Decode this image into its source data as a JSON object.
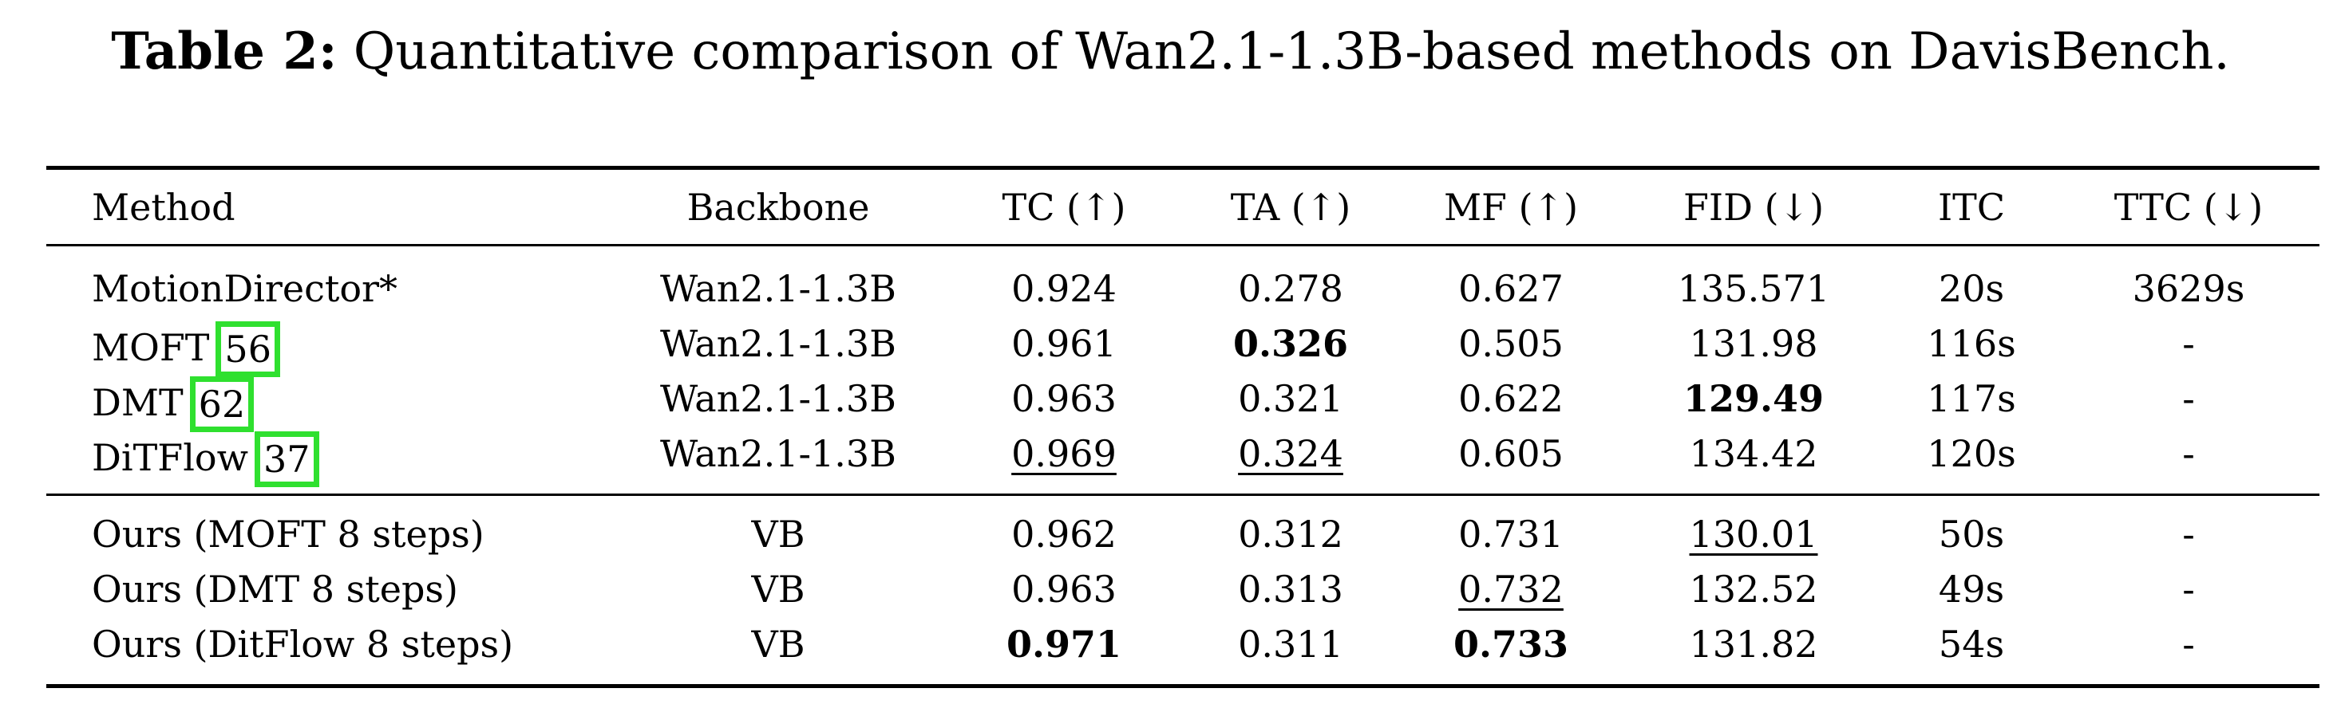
{
  "caption": {
    "label": "Table 2:",
    "text": "Quantitative comparison of Wan2.1-1.3B-based methods on DavisBench."
  },
  "table": {
    "headers": [
      "Method",
      "Backbone",
      "TC (↑)",
      "TA (↑)",
      "MF (↑)",
      "FID (↓)",
      "ITC",
      "TTC (↓)"
    ],
    "group1": [
      {
        "method": "MotionDirector*",
        "ref": "",
        "backbone": "Wan2.1-1.3B",
        "tc": "0.924",
        "ta": "0.278",
        "mf": "0.627",
        "fid": "135.571",
        "itc": "20s",
        "ttc": "3629s"
      },
      {
        "method": "MOFT",
        "ref": "56",
        "backbone": "Wan2.1-1.3B",
        "tc": "0.961",
        "ta": "0.326",
        "mf": "0.505",
        "fid": "131.98",
        "itc": "116s",
        "ttc": "-"
      },
      {
        "method": "DMT",
        "ref": "62",
        "backbone": "Wan2.1-1.3B",
        "tc": "0.963",
        "ta": "0.321",
        "mf": "0.622",
        "fid": "129.49",
        "itc": "117s",
        "ttc": "-"
      },
      {
        "method": "DiTFlow",
        "ref": "37",
        "backbone": "Wan2.1-1.3B",
        "tc": "0.969",
        "ta": "0.324",
        "mf": "0.605",
        "fid": "134.42",
        "itc": "120s",
        "ttc": "-"
      }
    ],
    "group2": [
      {
        "method": "Ours (MOFT 8 steps)",
        "backbone": "VB",
        "tc": "0.962",
        "ta": "0.312",
        "mf": "0.731",
        "fid": "130.01",
        "itc": "50s",
        "ttc": "-"
      },
      {
        "method": "Ours (DMT 8 steps)",
        "backbone": "VB",
        "tc": "0.963",
        "ta": "0.313",
        "mf": "0.732",
        "fid": "132.52",
        "itc": "49s",
        "ttc": "-"
      },
      {
        "method": "Ours (DitFlow 8 steps)",
        "backbone": "VB",
        "tc": "0.971",
        "ta": "0.311",
        "mf": "0.733",
        "fid": "131.82",
        "itc": "54s",
        "ttc": "-"
      }
    ]
  },
  "colors": {
    "ref_box": "#2fe02f",
    "text": "#000000",
    "background": "#ffffff"
  }
}
